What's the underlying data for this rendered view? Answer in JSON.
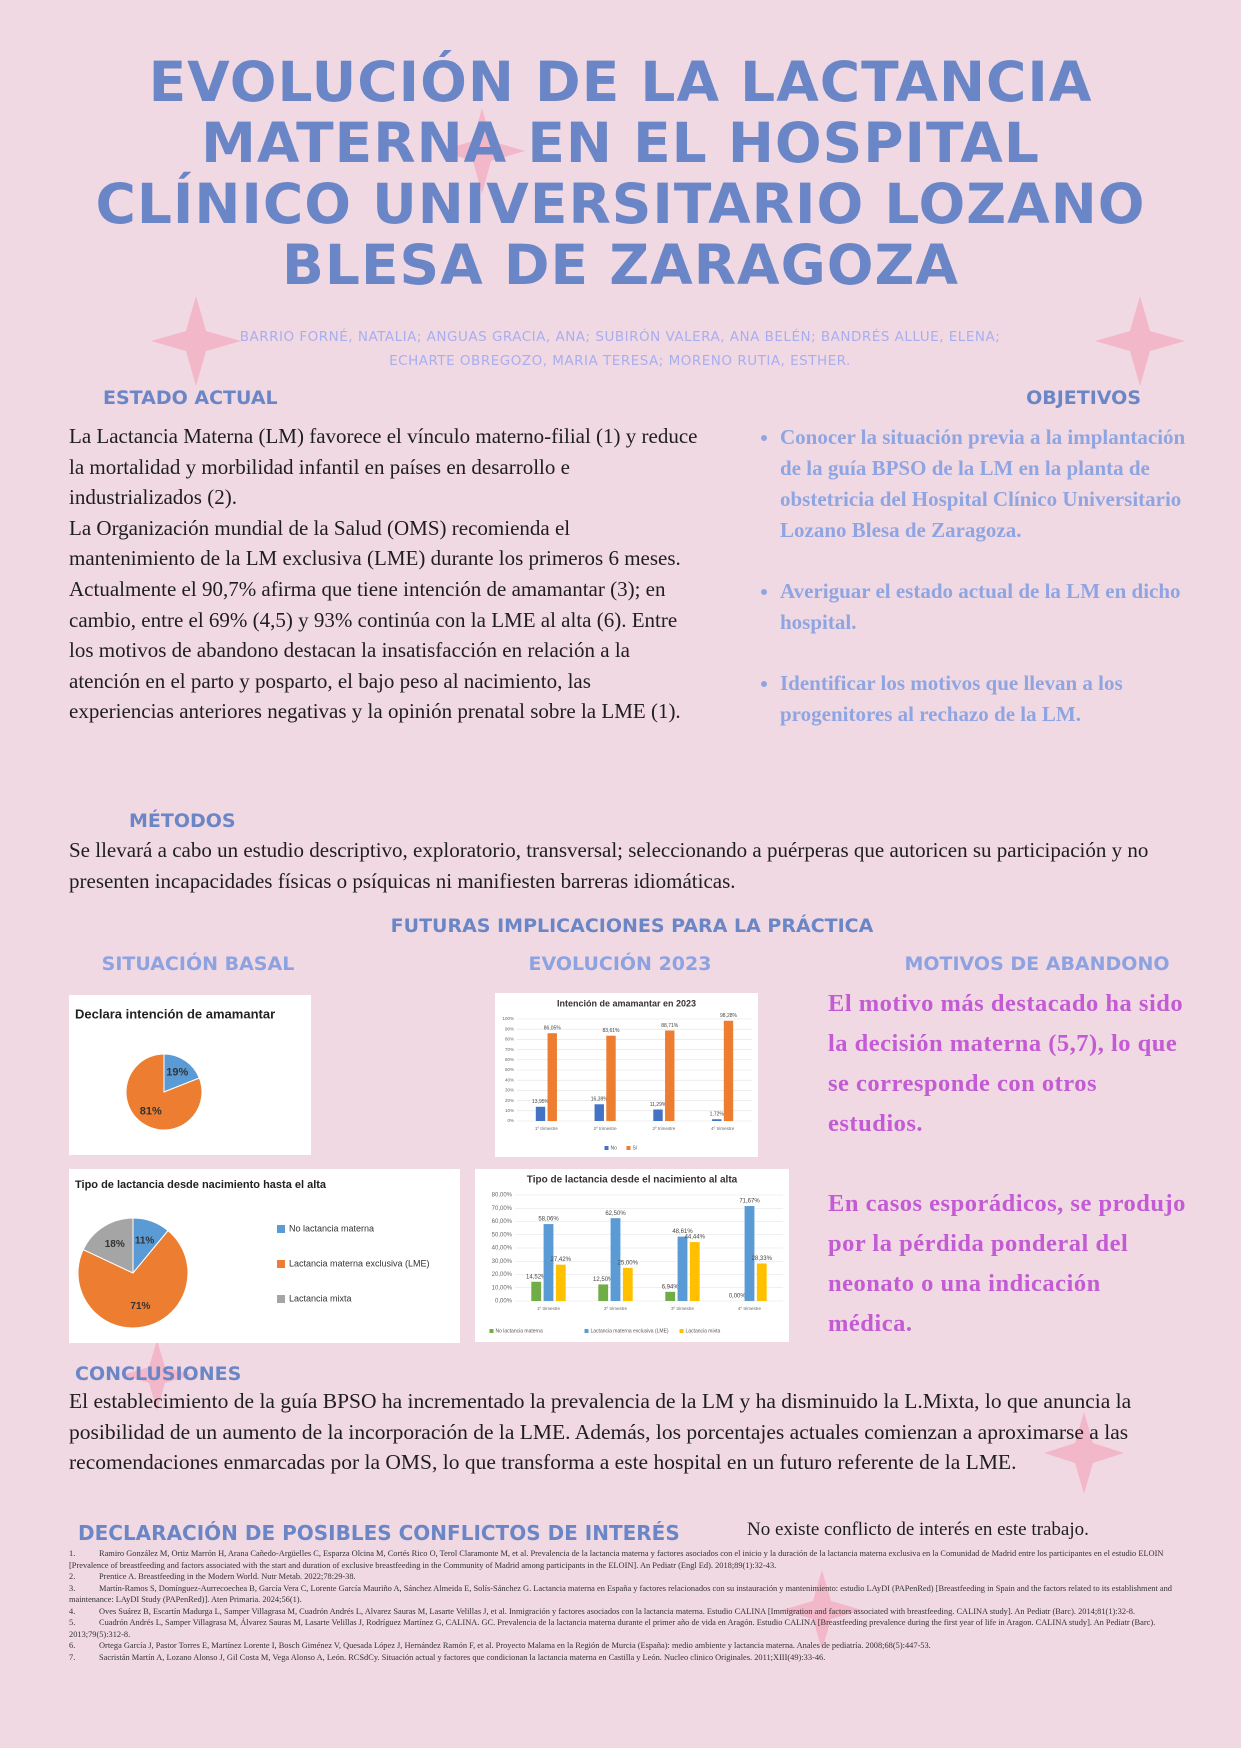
{
  "header": {
    "title_lines": [
      "EVOLUCIÓN DE LA LACTANCIA",
      "MATERNA EN EL HOSPITAL",
      "CLÍNICO UNIVERSITARIO LOZANO",
      "BLESA DE ZARAGOZA"
    ],
    "authors": [
      "BARRIO FORNÉ, NATALIA; ANGUAS GRACIA, ANA; SUBIRÓN VALERA, ANA BELÉN; BANDRÉS ALLUE, ELENA;",
      "ECHARTE OBREGOZO, MARIA TERESA; MORENO RUTIA, ESTHER."
    ]
  },
  "estado_actual": {
    "heading": "ESTADO ACTUAL",
    "paragraphs": [
      "La Lactancia Materna (LM) favorece el vínculo materno-filial (1) y reduce la mortalidad y morbilidad infantil en países en desarrollo e industrializados (2).",
      "La Organización mundial de la Salud (OMS) recomienda el mantenimiento de la LM exclusiva (LME) durante los primeros 6 meses.",
      "Actualmente el 90,7% afirma que tiene intención de amamantar (3); en cambio, entre el 69% (4,5) y 93% continúa con la LME al alta (6). Entre los motivos de abandono destacan la insatisfacción en relación a la atención en el parto y posparto, el bajo peso al nacimiento, las experiencias anteriores negativas y la opinión prenatal sobre la LME (1)."
    ]
  },
  "objetivos": {
    "heading": "OBJETIVOS",
    "items": [
      "Conocer la situación previa a la implantación de la guía BPSO de la LM en la planta de obstetricia del Hospital Clínico Universitario Lozano Blesa de Zaragoza.",
      "Averiguar el estado actual de la LM en dicho hospital.",
      "Identificar los motivos que llevan a los progenitores al rechazo de la LM."
    ]
  },
  "metodos": {
    "heading": "MÉTODOS",
    "text": "Se llevará a cabo un estudio descriptivo, exploratorio, transversal; seleccionando a puérperas que autoricen su participación y no presenten incapacidades físicas o psíquicas ni manifiesten barreras idiomáticas."
  },
  "implicaciones": {
    "heading": "FUTURAS IMPLICACIONES PARA LA PRÁCTICA",
    "subheadings": [
      "SITUACIÓN BASAL",
      "EVOLUCIÓN 2023",
      "MOTIVOS DE ABANDONO"
    ],
    "motivos": [
      "El motivo más destacado ha sido la decisión materna (5,7), lo que se corresponde con otros estudios.",
      "En casos esporádicos, se produjo por la pérdida ponderal del neonato o una indicación médica."
    ]
  },
  "charts": [
    {
      "type": "pie",
      "title": "Declara intención de amamantar",
      "values": [
        19,
        81
      ],
      "value_labels": [
        "19%",
        "81%"
      ],
      "colors": [
        "#5b9bd5",
        "#ed7d31"
      ]
    },
    {
      "type": "bar",
      "title": "Intención de amamantar en 2023",
      "categories": [
        "1º trimestre",
        "2º trimestre",
        "3º trimestre",
        "4º trimestre"
      ],
      "ylim": [
        0,
        100
      ],
      "yticks": [
        {
          "value": 0,
          "label": "0%"
        },
        {
          "value": 10,
          "label": "10%"
        },
        {
          "value": 20,
          "label": "20%"
        },
        {
          "value": 30,
          "label": "30%"
        },
        {
          "value": 40,
          "label": "40%"
        },
        {
          "value": 50,
          "label": "50%"
        },
        {
          "value": 60,
          "label": "60%"
        },
        {
          "value": 70,
          "label": "70%"
        },
        {
          "value": 80,
          "label": "80%"
        },
        {
          "value": 90,
          "label": "90%"
        },
        {
          "value": 100,
          "label": "100%"
        }
      ],
      "series": [
        {
          "name": "No",
          "color": "#4472c4",
          "values": [
            13.95,
            16.39,
            11.29,
            1.72
          ],
          "value_labels": [
            "13,95%",
            "16,39%",
            "11,29%",
            "1,72%"
          ]
        },
        {
          "name": "Sí",
          "color": "#ed7d31",
          "values": [
            86.05,
            83.61,
            88.71,
            98.28
          ],
          "value_labels": [
            "86,05%",
            "83,61%",
            "88,71%",
            "98,28%"
          ]
        }
      ]
    },
    {
      "type": "pie",
      "title": "Tipo de lactancia desde nacimiento hasta el alta",
      "labels": [
        "No lactancia materna",
        "Lactancia materna exclusiva (LME)",
        "Lactancia mixta"
      ],
      "values": [
        11,
        71,
        18
      ],
      "value_labels": [
        "11%",
        "71%",
        "18%"
      ],
      "colors": [
        "#5b9bd5",
        "#ed7d31",
        "#a5a5a5"
      ]
    },
    {
      "type": "bar",
      "title": "Tipo de lactancia desde el nacimiento al alta",
      "categories": [
        "1º trimestre",
        "2º trimestre",
        "3º trimestre",
        "4º trimestre"
      ],
      "ylim": [
        0,
        80
      ],
      "yticks": [
        {
          "value": 0,
          "label": "0,00%"
        },
        {
          "value": 10,
          "label": "10,00%"
        },
        {
          "value": 20,
          "label": "20,00%"
        },
        {
          "value": 30,
          "label": "30,00%"
        },
        {
          "value": 40,
          "label": "40,00%"
        },
        {
          "value": 50,
          "label": "50,00%"
        },
        {
          "value": 60,
          "label": "60,00%"
        },
        {
          "value": 70,
          "label": "70,00%"
        },
        {
          "value": 80,
          "label": "80,00%"
        }
      ],
      "series": [
        {
          "name": "No lactancia materna",
          "color": "#70ad47",
          "values": [
            14.52,
            12.5,
            6.94,
            0
          ],
          "value_labels": [
            "14,52%",
            "12,50%",
            "6,94%",
            "0,00%"
          ]
        },
        {
          "name": "Lactancia materna exclusiva (LME)",
          "color": "#5b9bd5",
          "values": [
            58.06,
            62.5,
            48.61,
            71.67
          ],
          "value_labels": [
            "58,06%",
            "62,50%",
            "48,61%",
            "71,67%"
          ]
        },
        {
          "name": "Lactancia mixta",
          "color": "#ffc000",
          "values": [
            27.42,
            25,
            44.44,
            28.33
          ],
          "value_labels": [
            "27,42%",
            "25,00%",
            "44,44%",
            "28,33%"
          ]
        }
      ]
    }
  ],
  "conclusiones": {
    "heading": "CONCLUSIONES",
    "text": "El establecimiento de la guía BPSO ha incrementado la prevalencia de la LM y ha disminuido la L.Mixta, lo que anuncia la posibilidad de un aumento de la incorporación de la LME. Además, los porcentajes actuales comienzan a aproximarse a las recomendaciones enmarcadas por la OMS, lo que transforma a este hospital en un futuro referente de la LME."
  },
  "conflictos": {
    "heading": "DECLARACIÓN DE POSIBLES CONFLICTOS DE INTERÉS",
    "text": "No existe conflicto de interés en este trabajo."
  },
  "references": [
    {
      "number": "1.",
      "text": "Ramiro González M, Ortiz Marrón H, Arana Cañedo-Argüelles C, Esparza Olcina M, Cortés Rico O, Terol Claramonte M, et al. Prevalencia de la lactancia materna y factores asociados con el inicio y la duración de la lactancia materna exclusiva en la Comunidad de Madrid entre los participantes en el estudio ELOIN [Prevalence of breastfeeding and factors associated with the start and duration of exclusive breastfeeding in the Community of Madrid among participants in the ELOIN]. An Pediatr (Engl Ed). 2018;89(1):32-43."
    },
    {
      "number": "2.",
      "text": "Prentice A. Breastfeeding in the Modern World. Nutr Metab. 2022;78:29-38."
    },
    {
      "number": "3.",
      "text": "Martín-Ramos S, Domínguez-Aurrecoechea B, García Vera C, Lorente García Mauriño A, Sánchez Almeida E, Solís-Sánchez G. Lactancia materna en España y factores relacionados con su instauración y mantenimiento: estudio LAyDI (PAPenRed) [Breastfeeding in Spain and the factors related to its establishment and maintenance: LAyDI Study (PAPenRed)]. Aten Primaria. 2024;56(1)."
    },
    {
      "number": "4.",
      "text": "Oves Suárez B, Escartín Madurga L, Samper Villagrasa M, Cuadrón Andrés L, Alvarez Sauras M, Lasarte Velillas J, et al. Inmigración y factores asociados con la lactancia materna. Estudio CALINA [Immigration and factors associated with breastfeeding. CALINA study]. An Pediatr (Barc). 2014;81(1):32-8."
    },
    {
      "number": "5.",
      "text": "Cuadrón Andrés L, Samper Villagrasa M, Álvarez Sauras M, Lasarte Velillas J, Rodríguez Martínez G, CALINA. GC. Prevalencia de la lactancia materna durante el primer año de vida en Aragón. Estudio CALINA [Breastfeeding prevalence during the first year of life in Aragon. CALINA study]. An Pediatr (Barc). 2013;79(5):312-8."
    },
    {
      "number": "6.",
      "text": "Ortega García J, Pastor Torres E, Martínez Lorente I, Bosch Giménez V, Quesada López J, Hernández Ramón F, et al. Proyecto Malama en la Región de Murcia (España): medio ambiente y lactancia materna. Anales de pediatría. 2008;68(5):447-53."
    },
    {
      "number": "7.",
      "text": "Sacristán Martín A, Lozano Alonso J, Gil Costa M, Vega Alonso A, León. RCSdCy. Situación actual y factores que condicionan la lactancia materna en Castilla y León. Nucleo clinico Originales. 2011;XIII(49):33-46."
    }
  ]
}
